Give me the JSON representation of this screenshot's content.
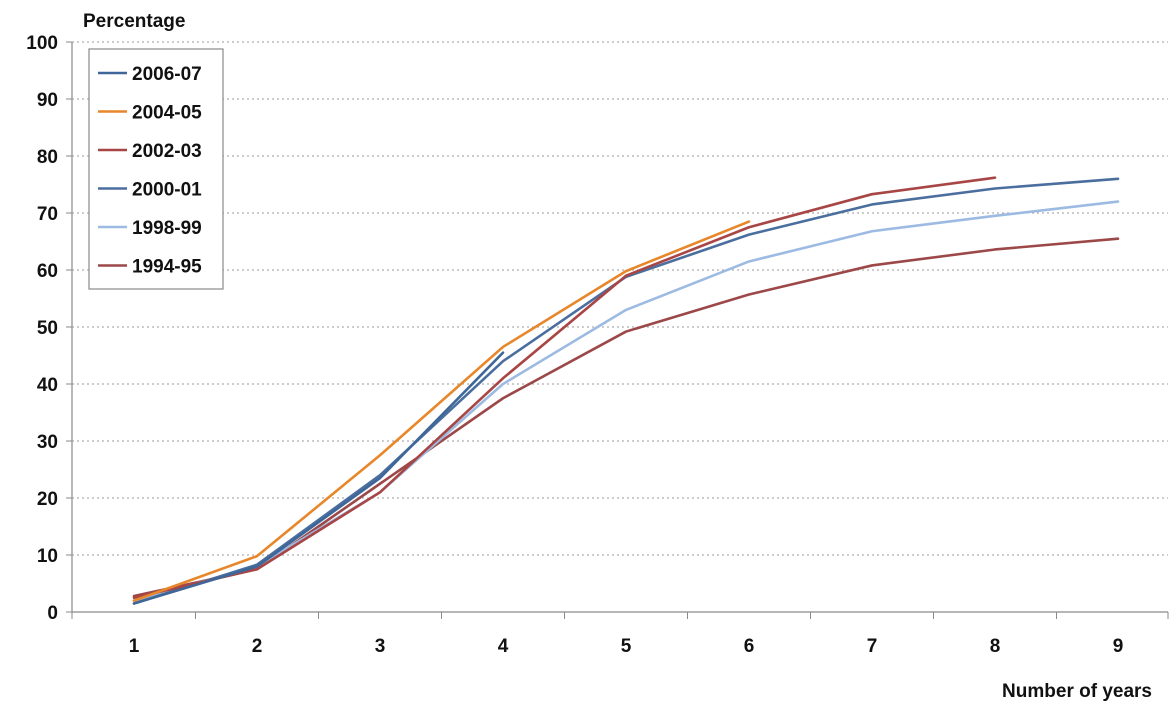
{
  "chart_data": {
    "type": "line",
    "title": "",
    "ylabel": "Percentage",
    "xlabel": "Number of years",
    "x": [
      1,
      2,
      3,
      4,
      5,
      6,
      7,
      8,
      9
    ],
    "x_tick_labels": [
      "1",
      "2",
      "3",
      "4",
      "5",
      "6",
      "7",
      "8",
      "9"
    ],
    "y_tick_labels": [
      "0",
      "10",
      "20",
      "30",
      "40",
      "50",
      "60",
      "70",
      "80",
      "90",
      "100"
    ],
    "ylim": [
      0,
      100
    ],
    "xlim": [
      1,
      9
    ],
    "grid": "horizontal dotted",
    "legend_position": "top-left",
    "series": [
      {
        "name": "2006-07",
        "color": "#3f6699",
        "values": [
          1.5,
          8.0,
          23.5,
          45.5,
          null,
          null,
          null,
          null,
          null
        ]
      },
      {
        "name": "2004-05",
        "color": "#e8862a",
        "values": [
          2.0,
          9.8,
          27.5,
          46.5,
          59.8,
          68.5,
          null,
          null,
          null
        ]
      },
      {
        "name": "2002-03",
        "color": "#a84545",
        "values": [
          2.5,
          7.5,
          21.0,
          41.0,
          59.0,
          67.5,
          73.3,
          76.2,
          null
        ]
      },
      {
        "name": "2000-01",
        "color": "#4a6e9e",
        "values": [
          1.5,
          8.3,
          24.0,
          44.0,
          58.8,
          66.2,
          71.5,
          74.3,
          76.0
        ]
      },
      {
        "name": "1998-99",
        "color": "#9dbbe2",
        "values": [
          2.0,
          8.0,
          21.0,
          40.0,
          53.0,
          61.5,
          66.8,
          69.5,
          72.0
        ]
      },
      {
        "name": "1994-95",
        "color": "#9c4848",
        "values": [
          2.8,
          7.5,
          22.5,
          37.5,
          49.2,
          55.7,
          60.8,
          63.6,
          65.5
        ]
      }
    ]
  }
}
